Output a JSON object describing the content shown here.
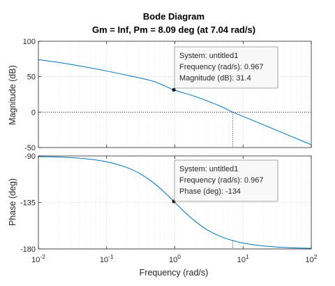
{
  "chart_data": {
    "type": "line",
    "title": "Bode Diagram",
    "subtitle": "Gm = Inf,  Pm = 8.09 deg (at 7.04 rad/s)",
    "xlabel": "Frequency  (rad/s)",
    "xscale": "log",
    "xlim": [
      0.01,
      100
    ],
    "x_ticks": [
      0.01,
      0.1,
      1,
      10,
      100
    ],
    "x_tick_labels": [
      {
        "base": "10",
        "exp": "-2"
      },
      {
        "base": "10",
        "exp": "-1"
      },
      {
        "base": "10",
        "exp": "0"
      },
      {
        "base": "10",
        "exp": "1"
      },
      {
        "base": "10",
        "exp": "2"
      }
    ],
    "grid": true,
    "crossover_frequency": 7.04,
    "panels": [
      {
        "name": "magnitude",
        "ylabel": "Magnitude (dB)",
        "ylim": [
          -50,
          100
        ],
        "y_ticks": [
          "-50",
          "0",
          "50",
          "100"
        ],
        "series": [
          {
            "color": "#0072bd",
            "x": [
              0.01,
              0.02,
              0.05,
              0.1,
              0.2,
              0.5,
              0.967,
              2,
              5,
              7.04,
              10,
              20,
              50,
              100
            ],
            "values": [
              74,
              70,
              63.5,
              58,
              52,
              43,
              31.4,
              22,
              7,
              0,
              -6,
              -18,
              -34,
              -46
            ]
          }
        ],
        "datatip": {
          "x": 0.967,
          "y": 31.4,
          "lines": [
            "System: untitled1",
            "Frequency (rad/s): 0.967",
            "Magnitude (dB): 31.4"
          ]
        }
      },
      {
        "name": "phase",
        "ylabel": "Phase (deg)",
        "ylim": [
          -180,
          -90
        ],
        "y_ticks": [
          "-180",
          "-135",
          "-90"
        ],
        "series": [
          {
            "color": "#0072bd",
            "x": [
              0.01,
              0.02,
              0.05,
              0.1,
              0.2,
              0.3,
              0.5,
              0.7,
              0.967,
              1.5,
              2,
              3,
              5,
              7.04,
              10,
              20,
              50,
              100
            ],
            "values": [
              -90.6,
              -91.1,
              -92.8,
              -95.7,
              -101.3,
              -106.7,
              -116.6,
              -125.0,
              -134.0,
              -146.3,
              -153.4,
              -161.6,
              -168.7,
              -171.9,
              -174.3,
              -177.1,
              -178.9,
              -179.4
            ]
          }
        ],
        "datatip": {
          "x": 0.967,
          "y": -134,
          "lines": [
            "System: untitled1",
            "Frequency (rad/s): 0.967",
            "Phase (deg): -134"
          ]
        }
      }
    ]
  }
}
